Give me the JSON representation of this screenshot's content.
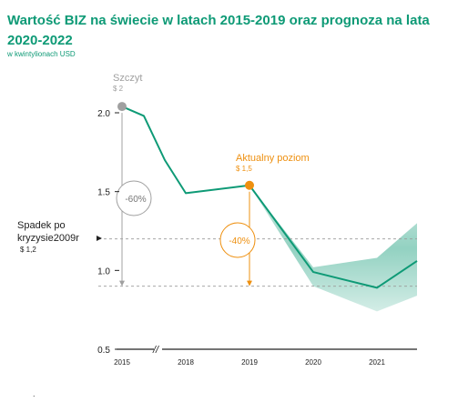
{
  "title": "Wartość BIZ na świecie w latach 2015-2019 oraz prognoza na lata 2020-2022",
  "subtitle": "w kwintylionach USD",
  "colors": {
    "line": "#0e9a76",
    "accent": "#ee9010",
    "grey": "#a0a0a0",
    "text": "#222222"
  },
  "annotations": {
    "peak": {
      "label": "Szczyt",
      "value": "$ 2"
    },
    "current": {
      "label": "Aktualny poziom",
      "value": "$ 1,5"
    },
    "crisis": {
      "label_line1": "Spadek po",
      "label_line2": "kryzysie2009r",
      "value": "$ 1,2"
    },
    "drop_peak": "-60%",
    "drop_current": "-40%",
    "axis_break": "//"
  },
  "footnote": ".",
  "chart_data": {
    "type": "line",
    "title": "Wartość BIZ na świecie w latach 2015-2019 oraz prognoza na lata 2020-2022",
    "ylabel": "w kwintylionach USD",
    "x_tick_labels": [
      "2015",
      "2018",
      "2019",
      "2020",
      "2021"
    ],
    "y_ticks": [
      0.5,
      1.0,
      1.5,
      2.0
    ],
    "y_tick_labels": [
      "0.5",
      "1.0",
      "1.5",
      "2.0"
    ],
    "ylim": [
      0.5,
      2.0
    ],
    "grid": false,
    "x_axis_break_between": [
      "2015",
      "2018"
    ],
    "series": [
      {
        "points": [
          {
            "x": "2015",
            "y": 2.04
          },
          {
            "x": "2016",
            "y": 1.98
          },
          {
            "x": "2017",
            "y": 1.7
          },
          {
            "x": "2018",
            "y": 1.49
          },
          {
            "x": "2019",
            "y": 1.54
          },
          {
            "x": "2020",
            "y": 0.99
          },
          {
            "x": "2021",
            "y": 0.89
          },
          {
            "x": "2022",
            "y": 1.06
          }
        ]
      }
    ],
    "forecast_band": {
      "x": [
        "2019",
        "2020",
        "2021",
        "2022"
      ],
      "upper": [
        1.54,
        1.02,
        1.08,
        1.3
      ],
      "lower": [
        1.54,
        0.9,
        0.74,
        0.84
      ]
    },
    "reference_lines": [
      {
        "y": 1.2,
        "style": "dashed"
      },
      {
        "y": 0.9,
        "style": "dashed"
      }
    ],
    "markers": [
      {
        "x": "2015",
        "y": 2.04,
        "color": "grey"
      },
      {
        "x": "2019",
        "y": 1.54,
        "color": "accent"
      }
    ]
  }
}
